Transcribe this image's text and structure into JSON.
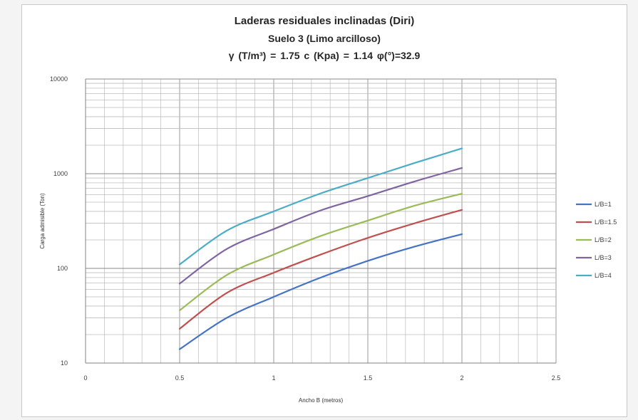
{
  "chart_data": {
    "type": "line",
    "title": "Laderas residuales inclinadas (Diri)",
    "subtitle": "Suelo 3 (Limo arcilloso)",
    "params": "γ (T/m³) = 1.75    c (Kpa) = 1.14      φ(°)=32.9",
    "xlabel": "Ancho B (metros)",
    "ylabel": "Carga admisible  (Ton)",
    "xlim": [
      0,
      2.5
    ],
    "ylim": [
      10,
      10000
    ],
    "yscale": "log",
    "grid": true,
    "legend": "right",
    "x_ticks": [
      "0",
      "0.5",
      "1",
      "1.5",
      "2",
      "2.5"
    ],
    "y_ticks": [
      "10",
      "100",
      "1000",
      "10000"
    ],
    "x": [
      0.5,
      0.75,
      1.0,
      1.25,
      1.5,
      1.75,
      2.0
    ],
    "series": [
      {
        "name": "L/B=1",
        "color": "#4472C4",
        "values": [
          14,
          30,
          50,
          80,
          120,
          170,
          230
        ]
      },
      {
        "name": "L/B=1.5",
        "color": "#C0504D",
        "values": [
          23,
          55,
          90,
          140,
          210,
          300,
          415
        ]
      },
      {
        "name": "L/B=2",
        "color": "#9BBB59",
        "values": [
          36,
          85,
          140,
          220,
          320,
          460,
          615
        ]
      },
      {
        "name": "L/B=3",
        "color": "#8064A2",
        "values": [
          69,
          160,
          260,
          410,
          580,
          830,
          1150
        ]
      },
      {
        "name": "L/B=4",
        "color": "#4BACC6",
        "values": [
          110,
          250,
          400,
          620,
          900,
          1300,
          1850
        ]
      }
    ]
  }
}
